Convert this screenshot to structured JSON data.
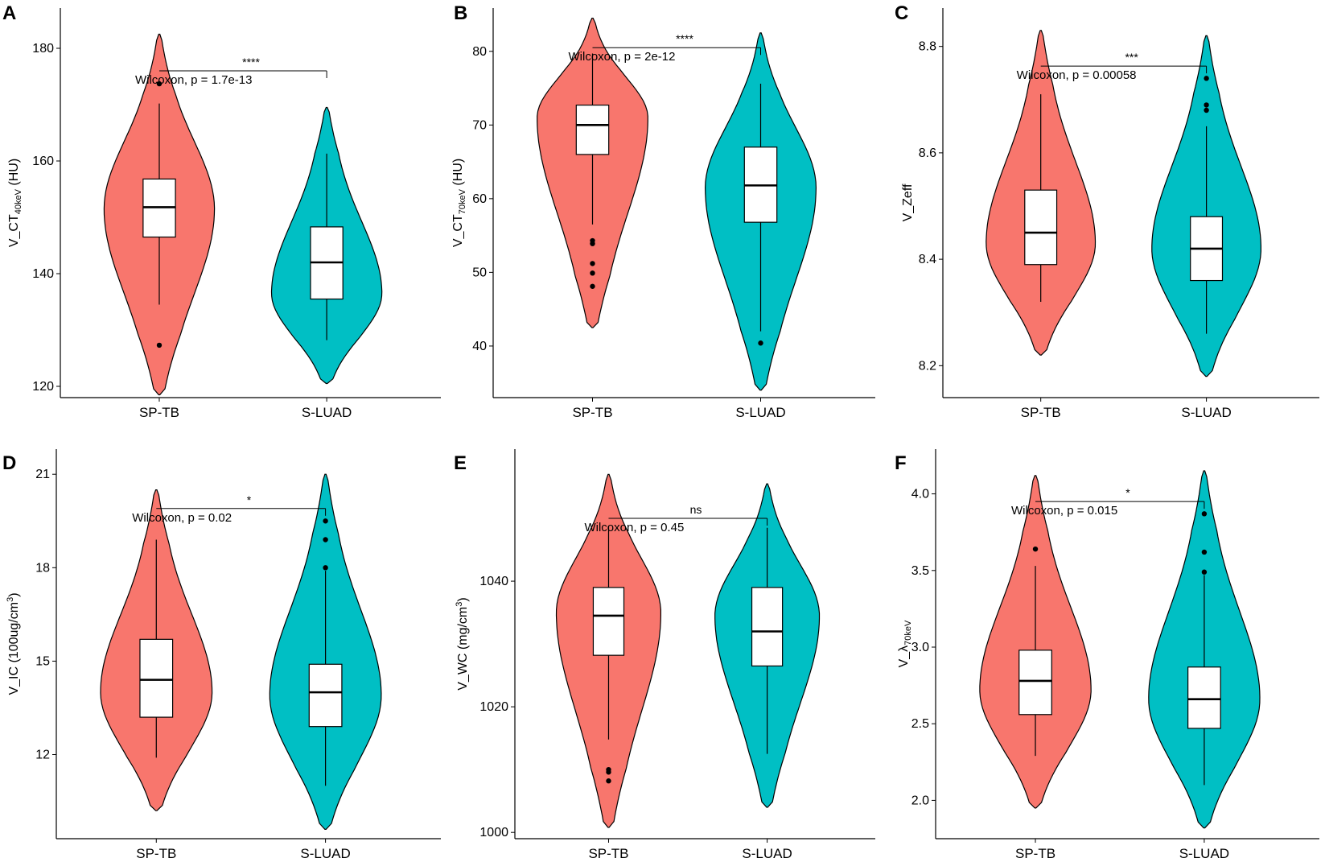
{
  "colors": {
    "sp_tb": "#F8766D",
    "s_luad": "#00BFC4"
  },
  "chart_data": [
    {
      "type": "violin",
      "panel": "A",
      "ylabel_main": "V_CT",
      "ylabel_sub": "40keV",
      "ylabel_end": " (HU)",
      "categories": [
        "SP-TB",
        "S-LUAD"
      ],
      "ylim": [
        118,
        186
      ],
      "yticks": [
        120,
        140,
        160,
        180
      ],
      "groups": [
        {
          "name": "SP-TB",
          "q1": 146.5,
          "median": 151.8,
          "q3": 156.8,
          "whisker_low": 134.5,
          "whisker_high": 170.2,
          "outliers": [
            173.7,
            127.3
          ],
          "ymin": 118.5,
          "ymax": 182.5,
          "density_peak": 151.5
        },
        {
          "name": "S-LUAD",
          "q1": 135.5,
          "median": 142.0,
          "q3": 148.3,
          "whisker_low": 128.2,
          "whisker_high": 161.3,
          "outliers": [],
          "ymin": 120.5,
          "ymax": 169.5,
          "density_peak": 136.5
        }
      ],
      "test_label": "Wilcoxon, p = 1.7e-13",
      "significance": "****",
      "bracket_y": 176.0
    },
    {
      "type": "violin",
      "panel": "B",
      "ylabel_main": "V_CT",
      "ylabel_sub": "70keV",
      "ylabel_end": " (HU)",
      "categories": [
        "SP-TB",
        "S-LUAD"
      ],
      "ylim": [
        33,
        85
      ],
      "yticks": [
        40,
        50,
        60,
        70,
        80
      ],
      "groups": [
        {
          "name": "SP-TB",
          "q1": 66.0,
          "median": 70.0,
          "q3": 72.7,
          "whisker_low": 56.5,
          "whisker_high": 79.7,
          "outliers": [
            54.3,
            53.9,
            51.2,
            49.9,
            48.1
          ],
          "ymin": 42.5,
          "ymax": 84.5,
          "density_peak": 71.0
        },
        {
          "name": "S-LUAD",
          "q1": 56.8,
          "median": 61.8,
          "q3": 67.0,
          "whisker_low": 42.0,
          "whisker_high": 75.6,
          "outliers": [
            40.4
          ],
          "ymin": 34.0,
          "ymax": 82.5,
          "density_peak": 61.5
        }
      ],
      "test_label": "Wilcoxon, p = 2e-12",
      "significance": "****",
      "bracket_y": 80.5
    },
    {
      "type": "violin",
      "panel": "C",
      "ylabel_main": "V_Zeff",
      "ylabel_sub": "",
      "ylabel_end": "",
      "categories": [
        "SP-TB",
        "S-LUAD"
      ],
      "ylim": [
        8.14,
        8.86
      ],
      "yticks": [
        "8.2",
        "8.4",
        "8.6",
        "8.8"
      ],
      "groups": [
        {
          "name": "SP-TB",
          "q1": 8.39,
          "median": 8.45,
          "q3": 8.53,
          "whisker_low": 8.32,
          "whisker_high": 8.71,
          "outliers": [],
          "ymin": 8.22,
          "ymax": 8.83,
          "density_peak": 8.43
        },
        {
          "name": "S-LUAD",
          "q1": 8.36,
          "median": 8.42,
          "q3": 8.48,
          "whisker_low": 8.26,
          "whisker_high": 8.65,
          "outliers": [
            8.74,
            8.69,
            8.68
          ],
          "ymin": 8.18,
          "ymax": 8.82,
          "density_peak": 8.42
        }
      ],
      "test_label": "Wilcoxon, p = 0.00058",
      "significance": "***",
      "bracket_y": 8.763
    },
    {
      "type": "violin",
      "panel": "D",
      "ylabel_main": "V_IC (100ug/cm",
      "ylabel_sup": "3",
      "ylabel_end": ")",
      "categories": [
        "SP-TB",
        "S-LUAD"
      ],
      "ylim": [
        9.3,
        21.6
      ],
      "yticks": [
        12,
        15,
        18,
        21
      ],
      "groups": [
        {
          "name": "SP-TB",
          "q1": 13.2,
          "median": 14.4,
          "q3": 15.7,
          "whisker_low": 11.9,
          "whisker_high": 18.9,
          "outliers": [],
          "ymin": 10.2,
          "ymax": 20.5,
          "density_peak": 14.0
        },
        {
          "name": "S-LUAD",
          "q1": 12.9,
          "median": 14.0,
          "q3": 14.9,
          "whisker_low": 11.0,
          "whisker_high": 17.9,
          "outliers": [
            19.5,
            18.9,
            18.0
          ],
          "ymin": 9.6,
          "ymax": 21.0,
          "density_peak": 13.9
        }
      ],
      "test_label": "Wilcoxon, p = 0.02",
      "significance": "*",
      "bracket_y": 19.9
    },
    {
      "type": "violin",
      "panel": "E",
      "ylabel_main": "V_WC (mg/cm",
      "ylabel_sup": "3",
      "ylabel_end": ")",
      "categories": [
        "SP-TB",
        "S-LUAD"
      ],
      "ylim": [
        999,
        1060
      ],
      "yticks": [
        1000,
        1020,
        1040
      ],
      "ytick_labels": [
        "1000",
        "1020",
        "1040"
      ],
      "groups": [
        {
          "name": "SP-TB",
          "q1": 1028.2,
          "median": 1034.5,
          "q3": 1039.0,
          "whisker_low": 1014.8,
          "whisker_high": 1048.8,
          "outliers": [
            1010.0,
            1009.6,
            1008.2
          ],
          "ymin": 1000.8,
          "ymax": 1057.0,
          "density_peak": 1035.0
        },
        {
          "name": "S-LUAD",
          "q1": 1026.5,
          "median": 1032.0,
          "q3": 1039.0,
          "whisker_low": 1012.5,
          "whisker_high": 1048.5,
          "outliers": [],
          "ymin": 1004.0,
          "ymax": 1055.5,
          "density_peak": 1034.5
        }
      ],
      "test_label": "Wilcoxon, p = 0.45",
      "significance": "ns",
      "bracket_y": 1050.0
    },
    {
      "type": "violin",
      "panel": "F",
      "ylabel_main": "V_λ",
      "ylabel_sub": "70keV",
      "ylabel_end": "",
      "categories": [
        "SP-TB",
        "S-LUAD"
      ],
      "ylim": [
        1.75,
        4.25
      ],
      "yticks": [
        "2.0",
        "2.5",
        "3.0",
        "3.5",
        "4.0"
      ],
      "groups": [
        {
          "name": "SP-TB",
          "q1": 2.56,
          "median": 2.78,
          "q3": 2.98,
          "whisker_low": 2.29,
          "whisker_high": 3.53,
          "outliers": [
            3.64
          ],
          "ymin": 1.95,
          "ymax": 4.12,
          "density_peak": 2.72
        },
        {
          "name": "S-LUAD",
          "q1": 2.47,
          "median": 2.66,
          "q3": 2.87,
          "whisker_low": 2.1,
          "whisker_high": 3.47,
          "outliers": [
            3.87,
            3.62,
            3.49
          ],
          "ymin": 1.82,
          "ymax": 4.15,
          "density_peak": 2.66
        }
      ],
      "test_label": "Wilcoxon, p = 0.015",
      "significance": "*",
      "bracket_y": 3.95
    }
  ]
}
